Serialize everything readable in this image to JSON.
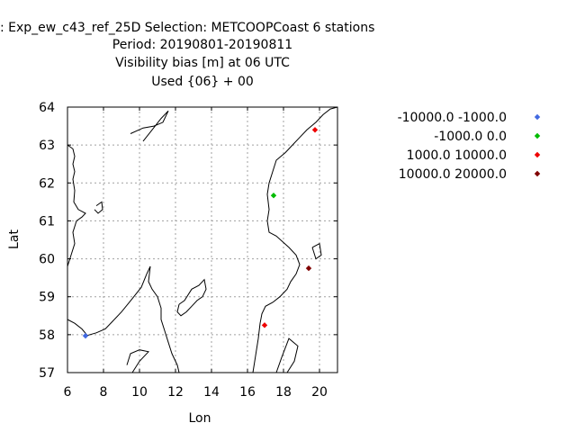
{
  "chart_data": {
    "type": "scatter",
    "title_lines": [
      ": Exp_ew_c43_ref_25D   Selection: METCOOPCoast      6 stations",
      "Period: 20190801-20190811",
      "Visibility bias [m] at  06 UTC",
      "Used {06} + 00"
    ],
    "xlabel": "Lon",
    "ylabel": "Lat",
    "xlim": [
      6,
      21
    ],
    "ylim": [
      57,
      64
    ],
    "xticks": [
      "6",
      "8",
      "10",
      "12",
      "14",
      "16",
      "18",
      "20"
    ],
    "yticks": [
      "57",
      "58",
      "59",
      "60",
      "61",
      "62",
      "63",
      "64"
    ],
    "grid": true,
    "legend_position": "right",
    "series": [
      {
        "name": "-10000.0 -1000.0",
        "color": "#4169e1",
        "points": [
          {
            "x": 7.0,
            "y": 57.97
          }
        ]
      },
      {
        "name": "-1000.0 0.0",
        "color": "#00bb00",
        "points": [
          {
            "x": 17.45,
            "y": 61.67
          }
        ]
      },
      {
        "name": "1000.0 10000.0",
        "color": "#ee0000",
        "points": [
          {
            "x": 19.75,
            "y": 63.4
          },
          {
            "x": 16.95,
            "y": 58.25
          }
        ]
      },
      {
        "name": "10000.0 20000.0",
        "color": "#800000",
        "points": [
          {
            "x": 19.4,
            "y": 59.75
          }
        ]
      }
    ],
    "coastlines": [
      [
        [
          6.0,
          63.0
        ],
        [
          6.3,
          62.9
        ],
        [
          6.4,
          62.7
        ],
        [
          6.3,
          62.5
        ],
        [
          6.4,
          62.3
        ],
        [
          6.3,
          62.1
        ],
        [
          6.4,
          61.8
        ],
        [
          6.35,
          61.5
        ],
        [
          6.6,
          61.3
        ],
        [
          7.0,
          61.2
        ],
        [
          6.8,
          61.1
        ],
        [
          6.5,
          61.0
        ],
        [
          6.3,
          60.7
        ],
        [
          6.4,
          60.4
        ],
        [
          6.2,
          60.1
        ],
        [
          6.0,
          59.8
        ]
      ],
      [
        [
          7.6,
          61.4
        ],
        [
          7.9,
          61.5
        ],
        [
          7.95,
          61.3
        ],
        [
          7.7,
          61.2
        ],
        [
          7.5,
          61.3
        ]
      ],
      [
        [
          6.0,
          58.4
        ],
        [
          6.4,
          58.3
        ],
        [
          6.8,
          58.15
        ],
        [
          7.1,
          57.98
        ],
        [
          7.6,
          58.05
        ],
        [
          8.1,
          58.15
        ],
        [
          8.5,
          58.35
        ],
        [
          9.0,
          58.6
        ],
        [
          9.6,
          58.95
        ],
        [
          10.1,
          59.25
        ],
        [
          10.4,
          59.6
        ],
        [
          10.6,
          59.8
        ],
        [
          10.5,
          59.4
        ],
        [
          10.7,
          59.2
        ],
        [
          11.0,
          59.0
        ],
        [
          11.2,
          58.7
        ],
        [
          11.2,
          58.4
        ],
        [
          11.4,
          58.1
        ],
        [
          11.6,
          57.8
        ],
        [
          11.8,
          57.5
        ],
        [
          12.1,
          57.2
        ],
        [
          12.2,
          57.0
        ]
      ],
      [
        [
          16.3,
          57.0
        ],
        [
          16.4,
          57.3
        ],
        [
          16.5,
          57.6
        ],
        [
          16.6,
          57.9
        ],
        [
          16.7,
          58.3
        ],
        [
          16.8,
          58.55
        ],
        [
          17.0,
          58.75
        ],
        [
          17.4,
          58.85
        ],
        [
          17.8,
          59.0
        ],
        [
          18.2,
          59.2
        ],
        [
          18.4,
          59.4
        ],
        [
          18.7,
          59.6
        ],
        [
          18.9,
          59.85
        ],
        [
          18.7,
          60.1
        ],
        [
          18.3,
          60.3
        ],
        [
          17.6,
          60.6
        ],
        [
          17.2,
          60.7
        ],
        [
          17.1,
          61.0
        ],
        [
          17.2,
          61.3
        ],
        [
          17.1,
          61.7
        ],
        [
          17.2,
          62.0
        ],
        [
          17.4,
          62.3
        ],
        [
          17.6,
          62.6
        ],
        [
          18.1,
          62.8
        ],
        [
          18.5,
          63.0
        ],
        [
          18.9,
          63.2
        ],
        [
          19.3,
          63.4
        ],
        [
          19.8,
          63.6
        ],
        [
          20.2,
          63.8
        ],
        [
          20.6,
          63.95
        ],
        [
          21.0,
          64.0
        ]
      ],
      [
        [
          12.2,
          58.8
        ],
        [
          12.5,
          58.9
        ],
        [
          12.9,
          59.2
        ],
        [
          13.3,
          59.3
        ],
        [
          13.6,
          59.45
        ],
        [
          13.7,
          59.2
        ],
        [
          13.5,
          59.0
        ],
        [
          13.2,
          58.9
        ],
        [
          12.9,
          58.75
        ],
        [
          12.6,
          58.6
        ],
        [
          12.3,
          58.5
        ],
        [
          12.1,
          58.6
        ],
        [
          12.2,
          58.8
        ]
      ],
      [
        [
          9.6,
          57.0
        ],
        [
          10.0,
          57.3
        ],
        [
          10.5,
          57.55
        ],
        [
          10.0,
          57.6
        ],
        [
          9.5,
          57.5
        ],
        [
          9.3,
          57.2
        ]
      ],
      [
        [
          17.6,
          57.0
        ],
        [
          17.9,
          57.4
        ],
        [
          18.3,
          57.9
        ],
        [
          18.8,
          57.7
        ],
        [
          18.6,
          57.3
        ],
        [
          18.2,
          57.0
        ]
      ],
      [
        [
          19.6,
          60.3
        ],
        [
          20.0,
          60.4
        ],
        [
          20.1,
          60.1
        ],
        [
          19.8,
          60.0
        ],
        [
          19.6,
          60.3
        ]
      ],
      [
        [
          9.5,
          63.3
        ],
        [
          10.2,
          63.45
        ],
        [
          10.8,
          63.5
        ],
        [
          11.3,
          63.6
        ],
        [
          11.6,
          63.9
        ],
        [
          11.2,
          63.7
        ],
        [
          10.7,
          63.4
        ],
        [
          10.2,
          63.1
        ]
      ]
    ]
  }
}
